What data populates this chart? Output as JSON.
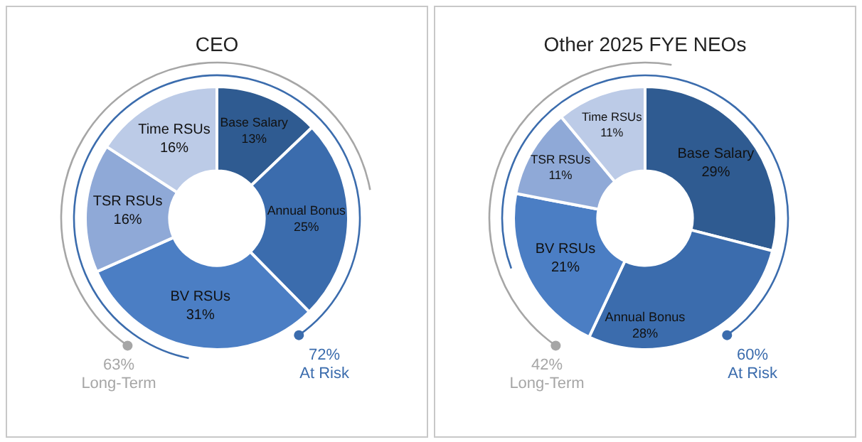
{
  "chart_data": [
    {
      "type": "donut",
      "title": "CEO",
      "categories": [
        "Base Salary",
        "Annual Bonus",
        "BV RSUs",
        "TSR RSUs",
        "Time RSUs"
      ],
      "values": [
        13,
        25,
        31,
        16,
        16
      ],
      "value_labels": [
        "13%",
        "25%",
        "31%",
        "16%",
        "16%"
      ],
      "colors": [
        "#2f5b91",
        "#3b6cad",
        "#4b7ec4",
        "#8fa9d7",
        "#bccbe7"
      ],
      "legend": false,
      "annotations": [
        "63%\nLong-Term",
        "72%\nAt Risk"
      ]
    },
    {
      "type": "donut",
      "title": "Other 2025 FYE NEOs",
      "categories": [
        "Base Salary",
        "Annual Bonus",
        "BV RSUs",
        "TSR RSUs",
        "Time RSUs"
      ],
      "values": [
        29,
        28,
        21,
        11,
        11
      ],
      "value_labels": [
        "29%",
        "28%",
        "21%",
        "11%",
        "11%"
      ],
      "colors": [
        "#2f5b91",
        "#3b6cad",
        "#4b7ec4",
        "#8fa9d7",
        "#bccbe7"
      ],
      "legend": false,
      "annotations": [
        "42%\nLong-Term",
        "60%\nAt Risk"
      ]
    }
  ]
}
